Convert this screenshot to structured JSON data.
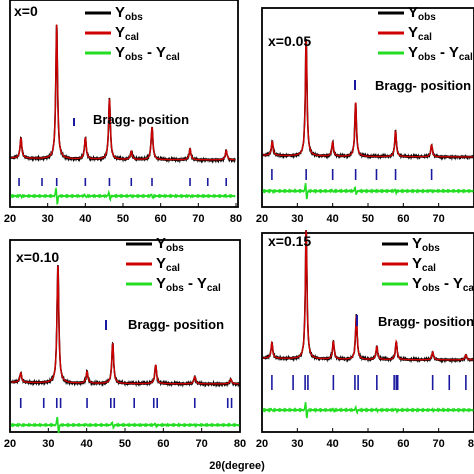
{
  "colors": {
    "obs": "#000000",
    "cal": "#d00000",
    "diff": "#22dd22",
    "bragg": "#1a1aa0"
  },
  "chart_data": [
    {
      "type": "line",
      "panel": "x0",
      "label": "x=0",
      "xlim": [
        20,
        80
      ],
      "xticks": [
        "20",
        "30",
        "40",
        "50",
        "60",
        "70",
        "80"
      ],
      "legend": [
        {
          "key": "obs",
          "main": "Y",
          "sub": "obs",
          "rest": ""
        },
        {
          "key": "cal",
          "main": "Y",
          "sub": "cal",
          "rest": ""
        },
        {
          "key": "diff",
          "main": "Y",
          "sub": "obs",
          "rest": " - Y",
          "sub2": "cal"
        }
      ],
      "bragg_label": "Bragg- position",
      "peaks": [
        [
          22.9,
          0.15
        ],
        [
          32.4,
          1.0
        ],
        [
          40.0,
          0.16
        ],
        [
          46.4,
          0.45
        ],
        [
          52.2,
          0.06
        ],
        [
          57.7,
          0.24
        ],
        [
          67.8,
          0.08
        ],
        [
          77.4,
          0.07
        ]
      ],
      "bragg_positions": [
        22.4,
        28.5,
        32.4,
        40.0,
        46.4,
        52.2,
        57.7,
        67.8,
        72.5,
        77.4
      ]
    },
    {
      "type": "line",
      "panel": "x005",
      "label": "x=0.05",
      "xlim": [
        20,
        80
      ],
      "xticks": [
        "20",
        "30",
        "40",
        "50",
        "60",
        "70"
      ],
      "legend": [
        {
          "key": "obs",
          "main": "Y",
          "sub": "obs",
          "rest": ""
        },
        {
          "key": "cal",
          "main": "Y",
          "sub": "cal",
          "rest": ""
        },
        {
          "key": "diff",
          "main": "Y",
          "sub": "obs",
          "rest": " - Y",
          "sub2": "cal"
        }
      ],
      "bragg_label": "Bragg- position",
      "peaks": [
        [
          22.9,
          0.12
        ],
        [
          32.5,
          1.0
        ],
        [
          40.0,
          0.12
        ],
        [
          46.5,
          0.46
        ],
        [
          57.8,
          0.22
        ],
        [
          68.0,
          0.1
        ]
      ],
      "bragg_positions": [
        22.8,
        32.5,
        40.0,
        46.5,
        52.4,
        57.8,
        68.0
      ]
    },
    {
      "type": "line",
      "panel": "x010",
      "label": "x=0.10",
      "xlim": [
        20,
        80
      ],
      "xticks": [
        "20",
        "30",
        "40",
        "50",
        "60",
        "70",
        "80"
      ],
      "legend": [
        {
          "key": "obs",
          "main": "Y",
          "sub": "obs",
          "rest": ""
        },
        {
          "key": "cal",
          "main": "Y",
          "sub": "cal",
          "rest": ""
        },
        {
          "key": "diff",
          "main": "Y",
          "sub": "obs",
          "rest": " - Y",
          "sub2": "cal"
        }
      ],
      "bragg_label": "Bragg- position",
      "peaks": [
        [
          22.8,
          0.08
        ],
        [
          32.5,
          1.0
        ],
        [
          40.1,
          0.1
        ],
        [
          46.8,
          0.34
        ],
        [
          58.0,
          0.16
        ],
        [
          68.2,
          0.06
        ],
        [
          77.6,
          0.04
        ]
      ],
      "bragg_positions": [
        22.8,
        28.8,
        32.2,
        33.2,
        40.1,
        46.3,
        47.2,
        52.4,
        57.5,
        58.4,
        68.2,
        76.8,
        77.8
      ]
    },
    {
      "type": "line",
      "panel": "x015",
      "label": "x=0.15",
      "xlim": [
        20,
        80
      ],
      "xticks": [
        "20",
        "30",
        "40",
        "50",
        "60",
        "70",
        "80"
      ],
      "xlabel": "2θ(degree)",
      "legend": [
        {
          "key": "obs",
          "main": "Y",
          "sub": "obs",
          "rest": ""
        },
        {
          "key": "cal",
          "main": "Y",
          "sub": "cal",
          "rest": ""
        },
        {
          "key": "diff",
          "main": "Y",
          "sub": "obs",
          "rest": " - Y",
          "sub2": "cal"
        }
      ],
      "bragg_label": "Bragg- position",
      "peaks": [
        [
          22.8,
          0.12
        ],
        [
          32.5,
          1.0
        ],
        [
          40.2,
          0.14
        ],
        [
          46.7,
          0.34
        ],
        [
          52.5,
          0.1
        ],
        [
          58.0,
          0.14
        ],
        [
          68.3,
          0.06
        ],
        [
          77.7,
          0.04
        ]
      ],
      "bragg_positions": [
        22.8,
        28.8,
        32.2,
        33.0,
        40.2,
        46.3,
        47.2,
        52.5,
        57.4,
        58.0,
        58.4,
        68.3,
        73.0,
        77.7
      ]
    }
  ]
}
